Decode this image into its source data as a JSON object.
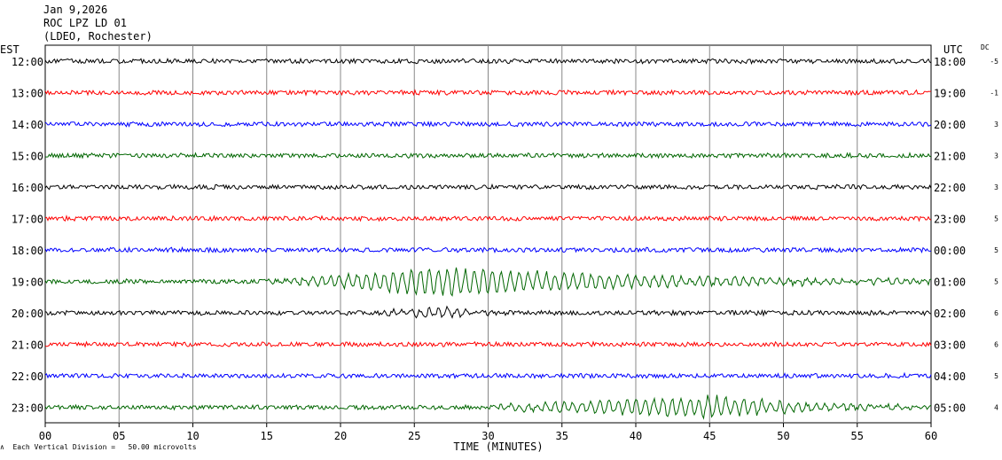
{
  "header": {
    "date": "Jan 9,2026",
    "station": "ROC LPZ LD 01",
    "source": "(LDEO, Rochester)"
  },
  "left_timezone": "EST",
  "right_timezone": "UTC",
  "dc_label": "DC",
  "footer_note": "Each Vertical Division =   50.00 microvolts",
  "chart_data": {
    "type": "line",
    "title": "",
    "xlabel": "TIME (MINUTES)",
    "xlim": [
      0,
      60
    ],
    "x_ticks": [
      "00",
      "05",
      "10",
      "15",
      "20",
      "25",
      "30",
      "35",
      "40",
      "45",
      "50",
      "55",
      "60"
    ],
    "x_tick_values": [
      0,
      5,
      10,
      15,
      20,
      25,
      30,
      35,
      40,
      45,
      50,
      55,
      60
    ],
    "grid": true,
    "trace_colors": [
      "#000000",
      "#ff0000",
      "#0000ff",
      "#006600"
    ],
    "rows": [
      {
        "est": "12:00",
        "utc": "18:00",
        "dc": "-5",
        "color": "#000000"
      },
      {
        "est": "13:00",
        "utc": "19:00",
        "dc": "-1",
        "color": "#ff0000"
      },
      {
        "est": "14:00",
        "utc": "20:00",
        "dc": "3",
        "color": "#0000ff"
      },
      {
        "est": "15:00",
        "utc": "21:00",
        "dc": "3",
        "color": "#006600"
      },
      {
        "est": "16:00",
        "utc": "22:00",
        "dc": "3",
        "color": "#000000"
      },
      {
        "est": "17:00",
        "utc": "23:00",
        "dc": "5",
        "color": "#ff0000"
      },
      {
        "est": "18:00",
        "utc": "00:00",
        "dc": "5",
        "color": "#0000ff"
      },
      {
        "est": "19:00",
        "utc": "01:00",
        "dc": "5",
        "color": "#006600",
        "event": {
          "start_min": 15,
          "peak_min": 26.5,
          "end_min": 60,
          "peak_amplitude": 1.0
        }
      },
      {
        "est": "20:00",
        "utc": "02:00",
        "dc": "6",
        "color": "#000000",
        "event": {
          "start_min": 21,
          "peak_min": 27,
          "end_min": 33,
          "peak_amplitude": 0.35
        }
      },
      {
        "est": "21:00",
        "utc": "03:00",
        "dc": "6",
        "color": "#ff0000"
      },
      {
        "est": "22:00",
        "utc": "04:00",
        "dc": "5",
        "color": "#0000ff"
      },
      {
        "est": "23:00",
        "utc": "05:00",
        "dc": "4",
        "color": "#006600",
        "event": {
          "start_min": 27,
          "peak_min": 45.3,
          "end_min": 60,
          "peak_amplitude": 0.75
        }
      }
    ]
  }
}
